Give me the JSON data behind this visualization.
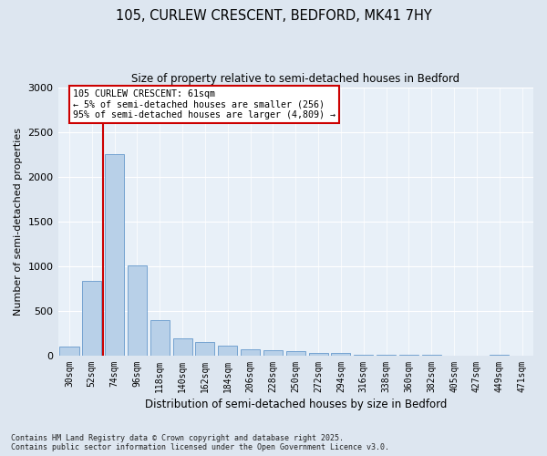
{
  "title1": "105, CURLEW CRESCENT, BEDFORD, MK41 7HY",
  "title2": "Size of property relative to semi-detached houses in Bedford",
  "xlabel": "Distribution of semi-detached houses by size in Bedford",
  "ylabel": "Number of semi-detached properties",
  "categories": [
    "30sqm",
    "52sqm",
    "74sqm",
    "96sqm",
    "118sqm",
    "140sqm",
    "162sqm",
    "184sqm",
    "206sqm",
    "228sqm",
    "250sqm",
    "272sqm",
    "294sqm",
    "316sqm",
    "338sqm",
    "360sqm",
    "382sqm",
    "405sqm",
    "427sqm",
    "449sqm",
    "471sqm"
  ],
  "values": [
    100,
    840,
    2250,
    1010,
    400,
    195,
    150,
    110,
    75,
    60,
    50,
    35,
    25,
    10,
    5,
    5,
    5,
    0,
    0,
    5,
    0
  ],
  "bar_color": "#b8d0e8",
  "bar_edge_color": "#6699cc",
  "vline_color": "#cc0000",
  "annotation_title": "105 CURLEW CRESCENT: 61sqm",
  "annotation_line1": "← 5% of semi-detached houses are smaller (256)",
  "annotation_line2": "95% of semi-detached houses are larger (4,809) →",
  "annotation_box_color": "#cc0000",
  "ylim": [
    0,
    3000
  ],
  "yticks": [
    0,
    500,
    1000,
    1500,
    2000,
    2500,
    3000
  ],
  "footnote1": "Contains HM Land Registry data © Crown copyright and database right 2025.",
  "footnote2": "Contains public sector information licensed under the Open Government Licence v3.0.",
  "bg_color": "#dde6f0",
  "plot_bg_color": "#e8f0f8"
}
